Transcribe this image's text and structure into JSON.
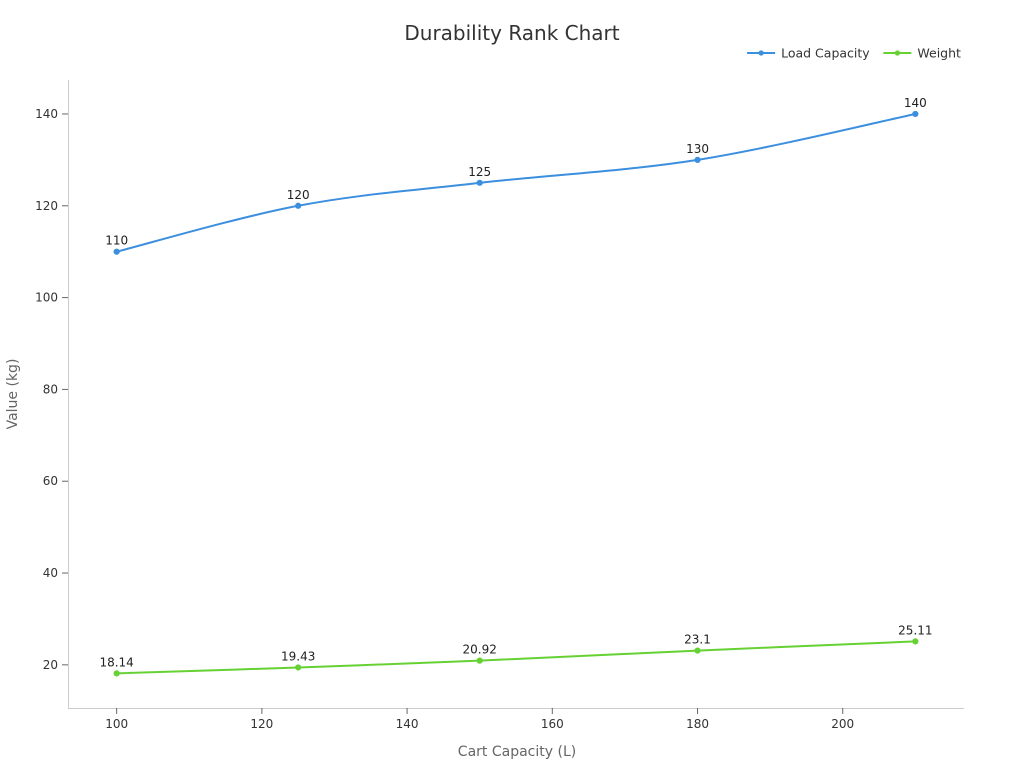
{
  "chart_data": {
    "type": "line",
    "title": "Durability Rank Chart",
    "xlabel": "Cart Capacity (L)",
    "ylabel": "Value (kg)",
    "xlim": [
      93.3,
      216.7
    ],
    "ylim": [
      10.6,
      147.4
    ],
    "x_ticks": [
      100,
      120,
      140,
      160,
      180,
      200
    ],
    "y_ticks": [
      20,
      40,
      60,
      80,
      100,
      120,
      140
    ],
    "legend_position": "top-right",
    "grid": false,
    "smooth": true,
    "series": [
      {
        "name": "Load Capacity",
        "color": "#3b8fde",
        "points": [
          {
            "x": 100,
            "y": 110,
            "label": "110"
          },
          {
            "x": 125,
            "y": 120,
            "label": "120"
          },
          {
            "x": 150,
            "y": 125,
            "label": "125"
          },
          {
            "x": 180,
            "y": 130,
            "label": "130"
          },
          {
            "x": 210,
            "y": 140,
            "label": "140"
          }
        ]
      },
      {
        "name": "Weight",
        "color": "#66d133",
        "points": [
          {
            "x": 100,
            "y": 18.14,
            "label": "18.14"
          },
          {
            "x": 125,
            "y": 19.43,
            "label": "19.43"
          },
          {
            "x": 150,
            "y": 20.92,
            "label": "20.92"
          },
          {
            "x": 180,
            "y": 23.1,
            "label": "23.1"
          },
          {
            "x": 210,
            "y": 25.11,
            "label": "25.11"
          }
        ]
      }
    ]
  }
}
